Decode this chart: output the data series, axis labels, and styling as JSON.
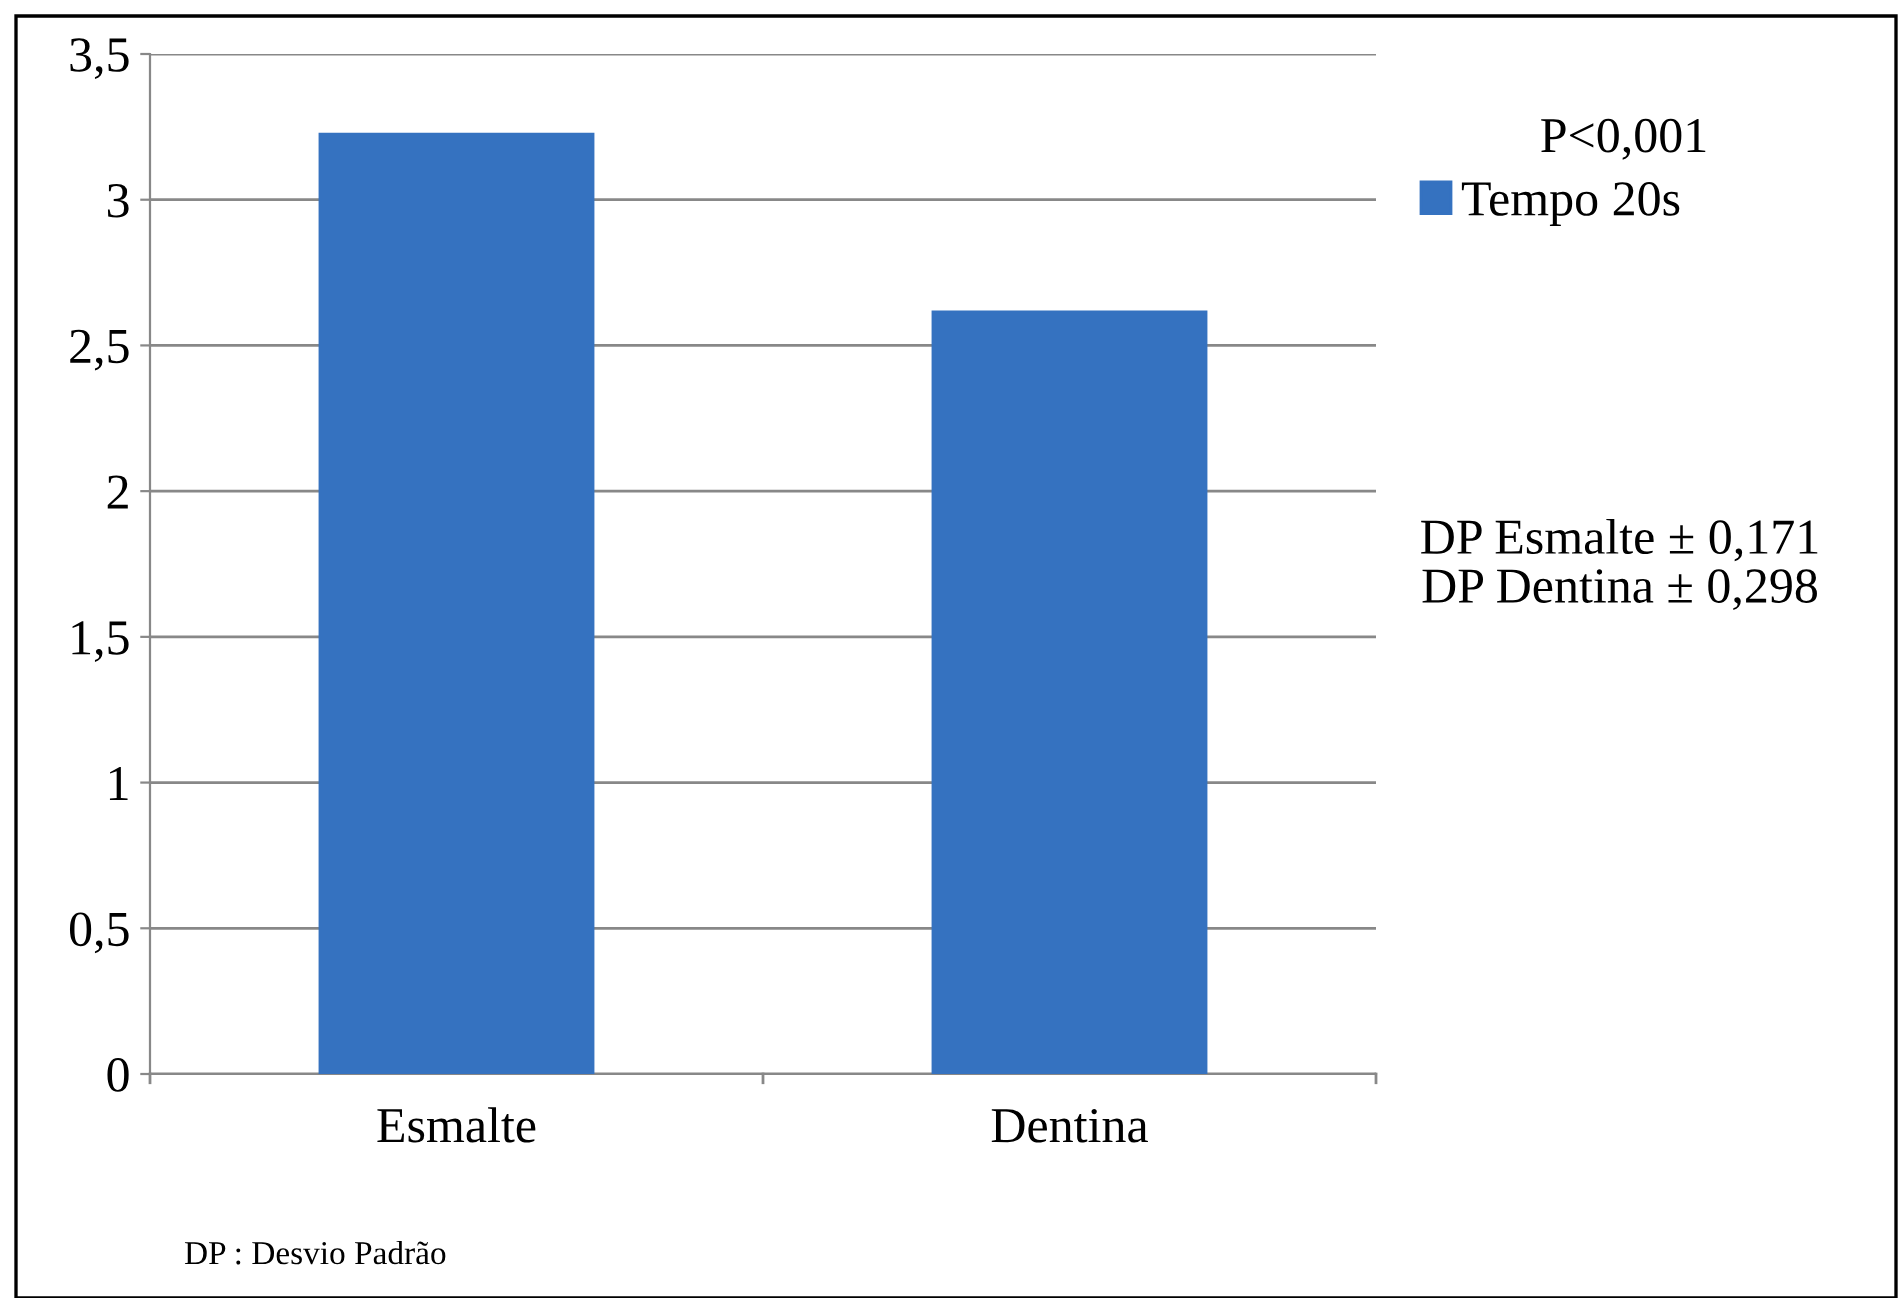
{
  "chart_data": {
    "type": "bar",
    "categories": [
      "Esmalte",
      "Dentina"
    ],
    "series": [
      {
        "name": "Tempo 20s",
        "color": "#3572c0",
        "values": [
          3.23,
          2.62
        ]
      }
    ],
    "ylim": [
      0,
      3.5
    ],
    "yticks": [
      0,
      {
        "value": 0.5,
        "label": "0,5"
      },
      1,
      {
        "value": 1.5,
        "label": "1,5"
      },
      2,
      {
        "value": 2.5,
        "label": "2,5"
      },
      3,
      {
        "value": 3.5,
        "label": "3,5"
      }
    ],
    "grid": "y",
    "legend": "right",
    "annotations": [
      "P<0,001",
      "DP Esmalte ± 0,171\nDP Dentina ± 0,298",
      "DP : Desvio Padrão"
    ]
  }
}
